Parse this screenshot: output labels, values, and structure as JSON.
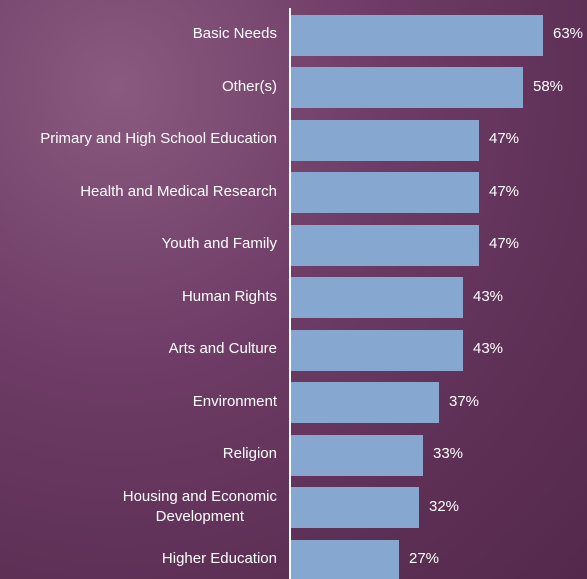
{
  "chart_data": {
    "type": "bar",
    "orientation": "horizontal",
    "categories": [
      "Basic Needs",
      "Other(s)",
      "Primary and High School Education",
      "Health and Medical Research",
      "Youth and Family",
      "Human Rights",
      "Arts and Culture",
      "Environment",
      "Religion",
      "Housing and Economic\nDevelopment",
      "Higher Education"
    ],
    "values": [
      63,
      58,
      47,
      47,
      47,
      43,
      43,
      37,
      33,
      32,
      27
    ],
    "value_labels": [
      "63%",
      "58%",
      "47%",
      "47%",
      "47%",
      "43%",
      "43%",
      "37%",
      "33%",
      "32%",
      "27%"
    ],
    "color": "#86a8d0"
  }
}
